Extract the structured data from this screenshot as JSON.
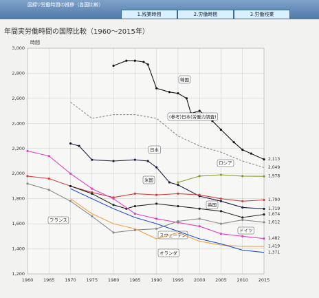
{
  "header": {
    "title": "図録▽労働時間の推移（各国比較）",
    "tabs": [
      "1.残業時間",
      "2.労働時間",
      "3.労働残業"
    ]
  },
  "chart_data": {
    "type": "line",
    "title": "年間実労働時間の国際比較（1960～2015年）",
    "y_label": "時間",
    "xlim": [
      1960,
      2015
    ],
    "xticks": [
      1960,
      1965,
      1970,
      1975,
      1980,
      1985,
      1990,
      1995,
      2000,
      2005,
      2010,
      2015
    ],
    "ylim": [
      1200,
      3000
    ],
    "yticks": [
      {
        "value": 1200,
        "label": "1,200"
      },
      {
        "value": 1400,
        "label": "1,400"
      },
      {
        "value": 1600,
        "label": "1,600"
      },
      {
        "value": 1800,
        "label": "1,800"
      },
      {
        "value": 2000,
        "label": "2,000"
      },
      {
        "value": 2200,
        "label": "2,200"
      },
      {
        "value": 2400,
        "label": "2,400"
      },
      {
        "value": 2600,
        "label": "2,600"
      },
      {
        "value": 2800,
        "label": "2,800"
      },
      {
        "value": 3000,
        "label": "3,000"
      }
    ],
    "grid": true,
    "series": [
      {
        "name": "韓国",
        "color": "#111111",
        "markers": true,
        "dashed": false,
        "x": [
          1980,
          1983,
          1985,
          1987,
          1988,
          1990,
          1993,
          1995,
          1997,
          1998,
          2000,
          2003,
          2005,
          2008,
          2010,
          2012,
          2015
        ],
        "values": [
          2860,
          2900,
          2900,
          2890,
          2870,
          2680,
          2650,
          2640,
          2600,
          2480,
          2500,
          2420,
          2350,
          2250,
          2190,
          2160,
          2113
        ],
        "value_labels": [
          null,
          null,
          null,
          null,
          null,
          null,
          null,
          null,
          null,
          null,
          null,
          null,
          null,
          null,
          null,
          null,
          "2,113"
        ]
      },
      {
        "name": "(参考)日本(労働力調査)",
        "color": "#8c8c8c",
        "markers": false,
        "dashed": true,
        "x": [
          1970,
          1975,
          1980,
          1985,
          1990,
          1995,
          2000,
          2005,
          2010,
          2015
        ],
        "values": [
          2570,
          2440,
          2470,
          2470,
          2440,
          2300,
          2220,
          2170,
          2100,
          2049
        ],
        "value_labels": [
          null,
          null,
          null,
          null,
          null,
          null,
          null,
          null,
          null,
          "2,049"
        ]
      },
      {
        "name": "日本",
        "color": "#1a1a40",
        "markers": true,
        "dashed": false,
        "x": [
          1970,
          1972,
          1975,
          1980,
          1985,
          1988,
          1990,
          1993,
          1995,
          2000,
          2005,
          2010,
          2015
        ],
        "values": [
          2240,
          2220,
          2110,
          2100,
          2110,
          2100,
          2050,
          1930,
          1910,
          1820,
          1780,
          1730,
          1719
        ],
        "value_labels": [
          null,
          null,
          null,
          null,
          null,
          null,
          null,
          null,
          null,
          null,
          null,
          null,
          "1,719"
        ]
      },
      {
        "name": "ロシア",
        "color": "#8a9a2a",
        "markers": true,
        "dashed": false,
        "x": [
          1995,
          2000,
          2005,
          2010,
          2015
        ],
        "values": [
          1930,
          1980,
          1990,
          1980,
          1978
        ],
        "value_labels": [
          null,
          null,
          null,
          null,
          "1,978"
        ]
      },
      {
        "name": "米国",
        "color": "#d04040",
        "markers": true,
        "dashed": false,
        "x": [
          1960,
          1965,
          1970,
          1975,
          1980,
          1985,
          1990,
          1995,
          2000,
          2005,
          2010,
          2015
        ],
        "values": [
          1980,
          1960,
          1900,
          1850,
          1810,
          1840,
          1830,
          1840,
          1830,
          1800,
          1780,
          1790
        ],
        "value_labels": [
          null,
          null,
          null,
          null,
          null,
          null,
          null,
          null,
          null,
          null,
          null,
          "1,790"
        ]
      },
      {
        "name": "英国",
        "color": "#222222",
        "markers": true,
        "dashed": false,
        "x": [
          1970,
          1975,
          1980,
          1983,
          1985,
          1990,
          1995,
          2000,
          2005,
          2010,
          2015
        ],
        "values": [
          1900,
          1840,
          1750,
          1720,
          1740,
          1760,
          1740,
          1720,
          1700,
          1650,
          1674
        ],
        "value_labels": [
          null,
          null,
          null,
          null,
          null,
          null,
          null,
          null,
          null,
          null,
          "1,674"
        ]
      },
      {
        "name": "フランス",
        "color": "#e040c0",
        "markers": true,
        "dashed": false,
        "x": [
          1960,
          1965,
          1970,
          1975,
          1980,
          1985,
          1990,
          1995,
          2000,
          2005,
          2010,
          2015
        ],
        "values": [
          2180,
          2140,
          2000,
          1880,
          1800,
          1680,
          1640,
          1610,
          1580,
          1520,
          1500,
          1482
        ],
        "value_labels": [
          null,
          null,
          null,
          null,
          null,
          null,
          null,
          null,
          null,
          null,
          null,
          "1,482"
        ]
      },
      {
        "name": "スウェーデン",
        "color": "#888888",
        "markers": true,
        "dashed": false,
        "x": [
          1960,
          1965,
          1970,
          1975,
          1980,
          1985,
          1990,
          1995,
          2000,
          2005,
          2010,
          2015
        ],
        "values": [
          1920,
          1870,
          1780,
          1660,
          1530,
          1550,
          1560,
          1620,
          1640,
          1600,
          1630,
          1612
        ],
        "value_labels": [
          null,
          null,
          null,
          null,
          null,
          null,
          null,
          null,
          null,
          null,
          null,
          "1,612"
        ]
      },
      {
        "name": "ドイツ",
        "color": "#f0a040",
        "markers": false,
        "dashed": false,
        "x": [
          1970,
          1975,
          1980,
          1985,
          1990,
          1995,
          2000,
          2005,
          2010,
          2015
        ],
        "values": [
          1800,
          1680,
          1600,
          1560,
          1480,
          1530,
          1460,
          1430,
          1420,
          1419
        ],
        "value_labels": [
          null,
          null,
          null,
          null,
          null,
          null,
          null,
          null,
          null,
          "1,419"
        ]
      },
      {
        "name": "オランダ",
        "color": "#2050d0",
        "markers": false,
        "dashed": false,
        "x": [
          1970,
          1975,
          1980,
          1985,
          1990,
          1995,
          2000,
          2005,
          2010,
          2015
        ],
        "values": [
          1880,
          1800,
          1720,
          1650,
          1600,
          1540,
          1480,
          1440,
          1390,
          1371
        ],
        "value_labels": [
          null,
          null,
          null,
          null,
          null,
          null,
          null,
          null,
          null,
          "1,371"
        ]
      }
    ]
  }
}
